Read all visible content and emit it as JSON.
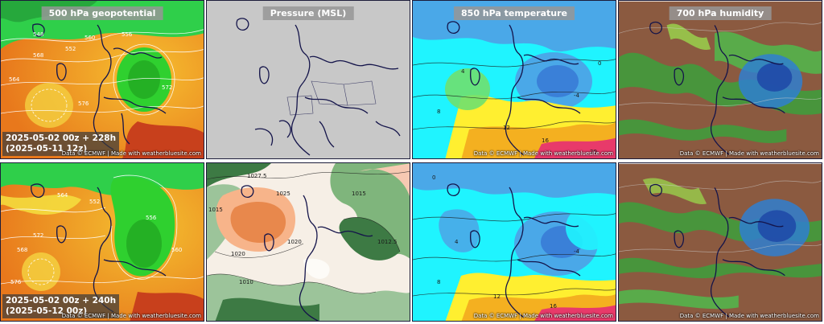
{
  "panel_titles": {
    "geopotential": "500 hPa geopotential",
    "pressure": "Pressure (MSL)",
    "temperature": "850 hPa temperature",
    "humidity": "700 hPa humidity"
  },
  "credit": "Data © ECMWF | Made with weatherbluesite.com",
  "runs": [
    {
      "line1": "2025-05-02 00z + 228h",
      "line2": "(2025-05-11 12z)"
    },
    {
      "line1": "2025-05-02 00z + 240h",
      "line2": "(2025-05-12 00z)"
    }
  ],
  "contour_labels": {
    "geopotential_top": [
      "548",
      "552",
      "556",
      "560",
      "564",
      "568",
      "572",
      "576"
    ],
    "geopotential_bottom": [
      "552",
      "556",
      "560",
      "564",
      "568",
      "572",
      "576"
    ],
    "pressure_bottom": [
      "1015",
      "1020",
      "1025",
      "1027.5",
      "1020",
      "1015",
      "1012.5",
      "1010"
    ],
    "temperature": [
      "-4",
      "0",
      "4",
      "8",
      "12",
      "16",
      "20"
    ]
  },
  "colors": {
    "coastline": "#14144a",
    "map_gray": "#c8c8c8",
    "geo_orange": "#f0a028",
    "geo_green": "#2fd02f",
    "temp_cyan": "#1ff4ff",
    "temp_blue": "#4aa8e8",
    "hum_brown": "#8b5a40",
    "hum_green": "#3ca03c"
  }
}
